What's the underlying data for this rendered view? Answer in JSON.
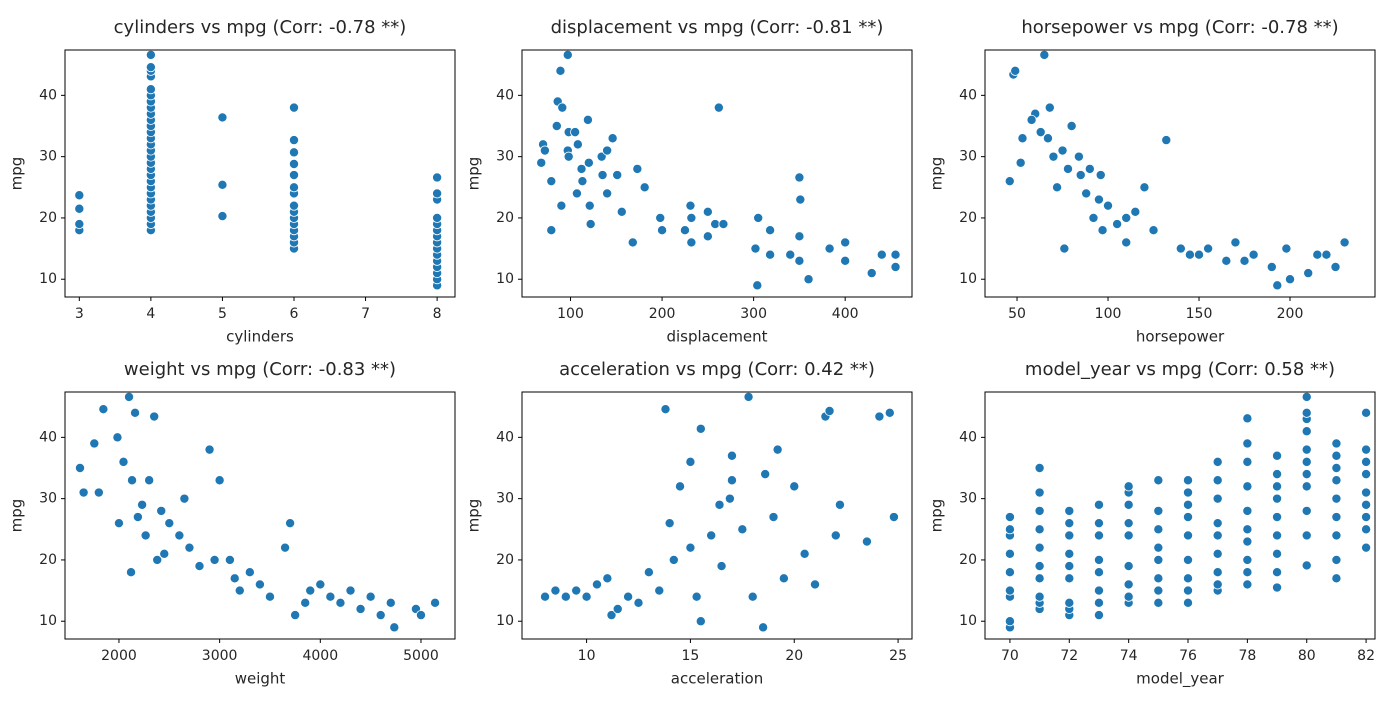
{
  "chart_data": [
    {
      "type": "scatter",
      "title": "cylinders vs mpg (Corr: -0.78 **)",
      "x_label": "cylinders",
      "y_label": "mpg",
      "color": "#1f77b4",
      "x": [
        3,
        3,
        3,
        3,
        4,
        4,
        4,
        4,
        4,
        4,
        4,
        4,
        4,
        4,
        4,
        4,
        4,
        4,
        4,
        4,
        4,
        4,
        4,
        4,
        4,
        4,
        4,
        4,
        4,
        4,
        4,
        4,
        5,
        5,
        5,
        6,
        6,
        6,
        6,
        6,
        6,
        6,
        6,
        6,
        6,
        6,
        6,
        6,
        6,
        6,
        8,
        8,
        8,
        8,
        8,
        8,
        8,
        8,
        8,
        8,
        8,
        8,
        8,
        8,
        8
      ],
      "y": [
        18,
        19,
        21.5,
        23.7,
        18,
        19,
        20,
        21,
        22,
        23,
        24,
        25,
        26,
        27,
        28,
        29,
        30,
        31,
        32,
        33,
        34,
        35,
        36,
        37,
        38,
        39,
        40,
        41,
        43.1,
        44,
        44.6,
        46.6,
        20.3,
        25.4,
        36.4,
        15,
        16,
        17,
        18,
        19,
        20,
        21,
        22,
        24,
        25,
        27,
        28.8,
        30.7,
        32.7,
        38,
        9,
        10,
        11,
        12,
        13,
        14,
        15,
        16,
        17,
        18,
        19,
        20,
        23,
        24,
        26.6
      ],
      "xlim": [
        2.8,
        8.25
      ],
      "ylim": [
        7.1,
        47.4
      ],
      "xticks": [
        3,
        4,
        5,
        6,
        7,
        8
      ],
      "yticks": [
        10,
        20,
        30,
        40
      ]
    },
    {
      "type": "scatter",
      "title": "displacement vs mpg (Corr: -0.81 **)",
      "x_label": "displacement",
      "y_label": "mpg",
      "color": "#1f77b4",
      "x": [
        68,
        70,
        72,
        79,
        85,
        86,
        89,
        91,
        97,
        97,
        98,
        98,
        105,
        107,
        108,
        112,
        113,
        119,
        120,
        121,
        122,
        134,
        135,
        140,
        146,
        151,
        156,
        168,
        173,
        181,
        198,
        200,
        225,
        231,
        232,
        250,
        258,
        262,
        267,
        302,
        304,
        305,
        318,
        340,
        350,
        350,
        351,
        360,
        383,
        400,
        400,
        429,
        440,
        455,
        455,
        350,
        318,
        250,
        232,
        140,
        90,
        79
      ],
      "y": [
        29,
        32,
        31,
        26,
        35,
        39,
        44,
        38,
        46.6,
        31,
        34,
        30,
        34,
        24,
        32,
        28,
        26,
        36,
        29,
        22,
        19,
        30,
        27,
        24,
        33,
        27,
        21,
        16,
        28,
        25,
        20,
        18,
        18,
        22,
        20,
        17,
        19,
        38,
        19,
        15,
        9,
        20,
        14,
        14,
        13,
        26.6,
        23,
        10,
        15,
        13,
        16,
        11,
        14,
        12,
        14,
        17,
        18,
        21,
        16,
        31,
        22,
        18
      ],
      "xlim": [
        47,
        473
      ],
      "ylim": [
        7.1,
        47.4
      ],
      "xticks": [
        100,
        200,
        300,
        400
      ],
      "yticks": [
        10,
        20,
        30,
        40
      ]
    },
    {
      "type": "scatter",
      "title": "horsepower vs mpg (Corr: -0.78 **)",
      "x_label": "horsepower",
      "y_label": "mpg",
      "color": "#1f77b4",
      "x": [
        46,
        48,
        49,
        52,
        53,
        60,
        63,
        65,
        67,
        68,
        70,
        72,
        75,
        76,
        78,
        80,
        84,
        85,
        88,
        90,
        92,
        95,
        97,
        100,
        105,
        110,
        115,
        120,
        125,
        132,
        140,
        145,
        150,
        155,
        165,
        170,
        175,
        180,
        190,
        193,
        198,
        200,
        210,
        215,
        220,
        225,
        230,
        110,
        96,
        58
      ],
      "y": [
        26,
        43.4,
        44,
        29,
        33,
        37,
        34,
        46.6,
        33,
        38,
        30,
        25,
        31,
        15,
        28,
        35,
        30,
        27,
        24,
        28,
        20,
        23,
        18,
        22,
        19,
        20,
        21,
        25,
        18,
        32.7,
        15,
        14,
        14,
        15,
        13,
        16,
        13,
        14,
        12,
        9,
        15,
        10,
        11,
        14,
        14,
        12,
        16,
        16,
        27,
        36
      ],
      "xlim": [
        32.4,
        246.7
      ],
      "ylim": [
        7.1,
        47.4
      ],
      "xticks": [
        50,
        100,
        150,
        200
      ],
      "yticks": [
        10,
        20,
        30,
        40
      ]
    },
    {
      "type": "scatter",
      "title": "weight vs mpg (Corr: -0.83 **)",
      "x_label": "weight",
      "y_label": "mpg",
      "color": "#1f77b4",
      "x": [
        1613,
        1649,
        1755,
        1800,
        1845,
        1985,
        2000,
        2045,
        2100,
        2130,
        2160,
        2188,
        2230,
        2265,
        2300,
        2350,
        2380,
        2420,
        2450,
        2500,
        2600,
        2650,
        2700,
        2800,
        2900,
        2950,
        3000,
        3102,
        3150,
        3200,
        3300,
        3400,
        3500,
        3650,
        3700,
        3750,
        3850,
        3900,
        4000,
        4100,
        4200,
        4300,
        4400,
        4500,
        4600,
        4700,
        4735,
        4950,
        5000,
        5140,
        2120
      ],
      "y": [
        35,
        31,
        39,
        31,
        44.6,
        40,
        26,
        36,
        46.6,
        33,
        44,
        27,
        29,
        24,
        33,
        43.4,
        20,
        28,
        21,
        26,
        24,
        30,
        22,
        19,
        38,
        20,
        33,
        20,
        17,
        15,
        18,
        16,
        14,
        22,
        26,
        11,
        13,
        15,
        16,
        14,
        13,
        15,
        12,
        14,
        11,
        13,
        9,
        12,
        11,
        13,
        18
      ],
      "xlim": [
        1464,
        5338
      ],
      "ylim": [
        7.1,
        47.4
      ],
      "xticks": [
        2000,
        3000,
        4000,
        5000
      ],
      "yticks": [
        10,
        20,
        30,
        40
      ]
    },
    {
      "type": "scatter",
      "title": "acceleration vs mpg (Corr: 0.42 **)",
      "x_label": "acceleration",
      "y_label": "mpg",
      "color": "#1f77b4",
      "x": [
        8,
        8.5,
        9,
        9.5,
        10,
        10.5,
        11,
        11.2,
        11.5,
        12,
        12.5,
        13,
        13.5,
        13.8,
        14,
        14.5,
        15,
        15,
        15.3,
        15.5,
        15.5,
        16,
        16.4,
        16.5,
        17,
        17,
        17.5,
        17.8,
        18,
        18.5,
        18.6,
        19,
        19.5,
        20,
        20.5,
        21,
        21.5,
        21.7,
        22,
        22.2,
        23.5,
        24.1,
        24.6,
        24.8,
        19.2,
        16.9,
        14.2
      ],
      "y": [
        14,
        15,
        14,
        15,
        14,
        16,
        17,
        11,
        12,
        14,
        13,
        18,
        15,
        44.6,
        26,
        32,
        36,
        22,
        14,
        41.4,
        10,
        24,
        29,
        19,
        33,
        37,
        25,
        46.6,
        14,
        9,
        34,
        27,
        17,
        32,
        21,
        16,
        43.4,
        44.3,
        24,
        29,
        23,
        43.4,
        44,
        27,
        38,
        30,
        20
      ],
      "xlim": [
        6.89,
        25.67
      ],
      "ylim": [
        7.1,
        47.4
      ],
      "xticks": [
        10,
        15,
        20,
        25
      ],
      "yticks": [
        10,
        20,
        30,
        40
      ]
    },
    {
      "type": "scatter",
      "title": "model_year vs mpg (Corr: 0.58 **)",
      "x_label": "model_year",
      "y_label": "mpg",
      "color": "#1f77b4",
      "x": [
        70,
        70,
        70,
        70,
        70,
        70,
        70,
        70,
        70,
        71,
        71,
        71,
        71,
        71,
        71,
        71,
        71,
        71,
        71,
        72,
        72,
        72,
        72,
        72,
        72,
        72,
        72,
        72,
        73,
        73,
        73,
        73,
        73,
        73,
        73,
        73,
        74,
        74,
        74,
        74,
        74,
        74,
        74,
        74,
        74,
        75,
        75,
        75,
        75,
        75,
        75,
        75,
        75,
        76,
        76,
        76,
        76,
        76,
        76,
        76,
        76,
        76,
        77,
        77,
        77,
        77,
        77,
        77,
        77,
        77,
        77,
        78,
        78,
        78,
        78,
        78,
        78,
        78,
        78,
        78,
        78,
        79,
        79,
        79,
        79,
        79,
        79,
        79,
        79,
        79,
        80,
        80,
        80,
        80,
        80,
        80,
        80,
        80,
        80,
        80,
        80,
        81,
        81,
        81,
        81,
        81,
        81,
        81,
        81,
        81,
        82,
        82,
        82,
        82,
        82,
        82,
        82,
        82,
        82
      ],
      "y": [
        9,
        10,
        14,
        15,
        18,
        21,
        24,
        25,
        27,
        12,
        13,
        14,
        17,
        19,
        22,
        25,
        28,
        31,
        35,
        11,
        12,
        13,
        17,
        19,
        21,
        24,
        26,
        28,
        11,
        13,
        15,
        18,
        20,
        24,
        26,
        29,
        13,
        14,
        16,
        19,
        24,
        26,
        29,
        31,
        32,
        13,
        15,
        17,
        20,
        22,
        25,
        28,
        33,
        13,
        15,
        17,
        20,
        24,
        27,
        29,
        31,
        33,
        15,
        16,
        18,
        21,
        24,
        26,
        30,
        33,
        36,
        16,
        18,
        20,
        23,
        25,
        28,
        32,
        36,
        39,
        43.1,
        15.5,
        18,
        21,
        24,
        27,
        30,
        32,
        34,
        37,
        19.1,
        24,
        28,
        32,
        34,
        36,
        38,
        41,
        43,
        44,
        46.6,
        17,
        20,
        24,
        27,
        30,
        33,
        35,
        37,
        39,
        22,
        25,
        27,
        29,
        31,
        34,
        36,
        38,
        44
      ],
      "xlim": [
        69.16,
        82.3
      ],
      "ylim": [
        7.1,
        47.4
      ],
      "xticks": [
        70,
        72,
        74,
        76,
        78,
        80,
        82
      ],
      "yticks": [
        10,
        20,
        30,
        40
      ]
    }
  ]
}
